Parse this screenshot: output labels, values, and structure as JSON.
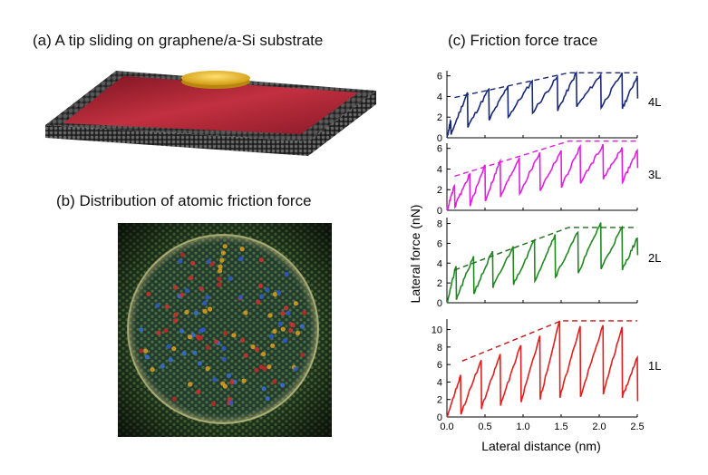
{
  "captions": {
    "a": "(a) A tip sliding on graphene/a-Si substrate",
    "b": "(b) Distribution of atomic friction force",
    "c": "(c) Friction force trace"
  },
  "chart_data": {
    "type": "line",
    "title": "(c) Friction force trace",
    "xlabel": "Lateral distance (nm)",
    "ylabel": "Lateral force (nN)",
    "xlim": [
      0,
      2.5
    ],
    "xticks": [
      "0.0",
      "0.5",
      "1.0",
      "1.5",
      "2.0",
      "2.5"
    ],
    "panels": [
      {
        "label": "4L",
        "color": "#1a2a7a",
        "envelope_color": "#1a2a7a",
        "ylim": [
          0,
          6.5
        ],
        "yticks": [
          0,
          2,
          4,
          6
        ],
        "stick_slip": [
          {
            "x": 0.0,
            "drop": 0.0
          },
          {
            "x": 0.05,
            "peak": 1.6,
            "drop": 0.3
          },
          {
            "x": 0.27,
            "peak": 4.4,
            "drop": 1.0
          },
          {
            "x": 0.55,
            "peak": 4.7,
            "drop": 1.7
          },
          {
            "x": 0.8,
            "peak": 5.0,
            "drop": 2.0
          },
          {
            "x": 1.12,
            "peak": 5.5,
            "drop": 2.4
          },
          {
            "x": 1.45,
            "peak": 5.9,
            "drop": 2.6
          },
          {
            "x": 1.7,
            "peak": 6.3,
            "drop": 3.0
          },
          {
            "x": 2.02,
            "peak": 6.1,
            "drop": 2.9
          },
          {
            "x": 2.3,
            "peak": 6.3,
            "drop": 2.8
          },
          {
            "x": 2.5,
            "peak": 6.0,
            "drop": 3.8
          }
        ],
        "envelope": {
          "x": [
            0.1,
            1.6,
            2.5
          ],
          "y": [
            3.9,
            6.3,
            6.3
          ]
        }
      },
      {
        "label": "3L",
        "color": "#e020e0",
        "envelope_color": "#e020e0",
        "ylim": [
          0,
          6.5
        ],
        "yticks": [
          0,
          2,
          4,
          6
        ],
        "stick_slip": [
          {
            "x": 0.0,
            "drop": 0.0
          },
          {
            "x": 0.1,
            "peak": 2.4,
            "drop": 0.3
          },
          {
            "x": 0.3,
            "peak": 3.5,
            "drop": 0.4
          },
          {
            "x": 0.5,
            "peak": 4.4,
            "drop": 0.9
          },
          {
            "x": 0.7,
            "peak": 4.8,
            "drop": 1.3
          },
          {
            "x": 0.95,
            "peak": 5.1,
            "drop": 1.6
          },
          {
            "x": 1.22,
            "peak": 5.6,
            "drop": 1.9
          },
          {
            "x": 1.5,
            "peak": 5.8,
            "drop": 2.2
          },
          {
            "x": 1.75,
            "peak": 6.2,
            "drop": 2.6
          },
          {
            "x": 2.05,
            "peak": 6.4,
            "drop": 3.0
          },
          {
            "x": 2.3,
            "peak": 6.1,
            "drop": 2.7
          },
          {
            "x": 2.5,
            "peak": 5.8,
            "drop": 4.1
          }
        ],
        "envelope": {
          "x": [
            0.1,
            1.6,
            2.5
          ],
          "y": [
            3.3,
            6.7,
            6.7
          ]
        }
      },
      {
        "label": "2L",
        "color": "#228822",
        "envelope_color": "#1d6b1d",
        "ylim": [
          0,
          8.6
        ],
        "yticks": [
          0,
          2,
          4,
          6,
          8
        ],
        "stick_slip": [
          {
            "x": 0.0,
            "drop": 0.0
          },
          {
            "x": 0.12,
            "peak": 3.7,
            "drop": 0.3
          },
          {
            "x": 0.35,
            "peak": 4.7,
            "drop": 0.9
          },
          {
            "x": 0.6,
            "peak": 5.2,
            "drop": 1.5
          },
          {
            "x": 0.87,
            "peak": 5.7,
            "drop": 1.8
          },
          {
            "x": 1.15,
            "peak": 6.3,
            "drop": 2.2
          },
          {
            "x": 1.42,
            "peak": 6.9,
            "drop": 2.6
          },
          {
            "x": 1.72,
            "peak": 7.1,
            "drop": 3.0
          },
          {
            "x": 2.02,
            "peak": 8.1,
            "drop": 3.4
          },
          {
            "x": 2.3,
            "peak": 7.6,
            "drop": 3.3
          },
          {
            "x": 2.5,
            "peak": 6.5,
            "drop": 4.8
          }
        ],
        "envelope": {
          "x": [
            0.1,
            1.6,
            2.5
          ],
          "y": [
            3.3,
            7.6,
            7.6
          ]
        }
      },
      {
        "label": "1L",
        "color": "#e02020",
        "envelope_color": "#c01818",
        "ylim": [
          0,
          11.2
        ],
        "yticks": [
          0,
          2,
          4,
          6,
          8,
          10
        ],
        "stick_slip": [
          {
            "x": 0.0,
            "drop": 0.0
          },
          {
            "x": 0.18,
            "peak": 4.8,
            "drop": 0.3
          },
          {
            "x": 0.45,
            "peak": 6.5,
            "drop": 0.9
          },
          {
            "x": 0.7,
            "peak": 7.2,
            "drop": 1.3
          },
          {
            "x": 0.97,
            "peak": 8.2,
            "drop": 1.7
          },
          {
            "x": 1.22,
            "peak": 9.3,
            "drop": 2.0
          },
          {
            "x": 1.48,
            "peak": 11.0,
            "drop": 2.2
          },
          {
            "x": 1.75,
            "peak": 10.4,
            "drop": 2.3
          },
          {
            "x": 2.05,
            "peak": 10.5,
            "drop": 2.6
          },
          {
            "x": 2.3,
            "peak": 10.3,
            "drop": 2.2
          },
          {
            "x": 2.5,
            "peak": 6.8,
            "drop": 1.8
          }
        ],
        "envelope": {
          "x": [
            0.2,
            1.5,
            2.5
          ],
          "y": [
            6.4,
            11.0,
            11.0
          ]
        }
      }
    ]
  }
}
